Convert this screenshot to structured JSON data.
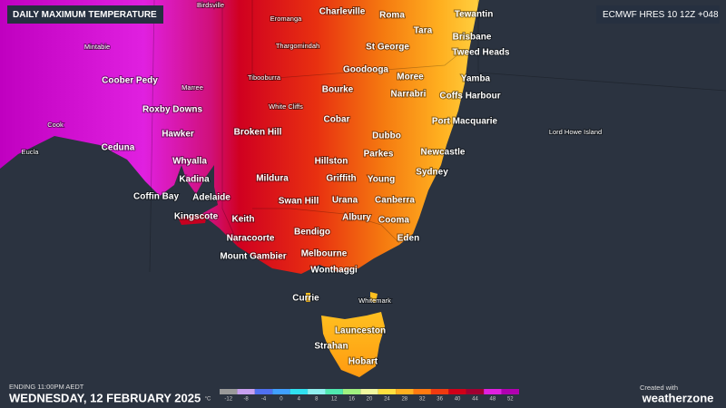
{
  "header": {
    "title": "DAILY MAXIMUM TEMPERATURE",
    "model": "ECMWF HRES 10 12Z +048"
  },
  "footer": {
    "ending": "ENDING 11:00PM AEDT",
    "date": "WEDNESDAY, 12 FEBRUARY 2025",
    "credit": "Created with",
    "brand": "weatherzone"
  },
  "legend": {
    "unit": "°C",
    "stops": [
      {
        "value": -12,
        "color": "#9a9a9a"
      },
      {
        "value": -8,
        "color": "#c8a0f0"
      },
      {
        "value": -4,
        "color": "#5070f0"
      },
      {
        "value": 0,
        "color": "#40a0ff"
      },
      {
        "value": 4,
        "color": "#30e0f0"
      },
      {
        "value": 8,
        "color": "#90f0f0"
      },
      {
        "value": 12,
        "color": "#50e8b0"
      },
      {
        "value": 16,
        "color": "#a0f080"
      },
      {
        "value": 20,
        "color": "#f0f8a0"
      },
      {
        "value": 24,
        "color": "#ffe040"
      },
      {
        "value": 28,
        "color": "#ffb020"
      },
      {
        "value": 32,
        "color": "#ff7a10"
      },
      {
        "value": 36,
        "color": "#f03a10"
      },
      {
        "value": 40,
        "color": "#d00018"
      },
      {
        "value": 44,
        "color": "#a00030"
      },
      {
        "value": 48,
        "color": "#e020e0"
      },
      {
        "value": 52,
        "color": "#b000b0"
      }
    ]
  },
  "places": [
    "Birdsville",
    "Eromanga",
    "Charleville",
    "Roma",
    "Tewantin",
    "Tara",
    "Brisbane",
    "Mintabie",
    "Thargomindah",
    "St George",
    "Tweed Heads",
    "Goodooga",
    "Coober Pedy",
    "Marree",
    "Tibooburra",
    "Moree",
    "Yamba",
    "Bourke",
    "Narrabri",
    "Coffs Harbour",
    "Roxby Downs",
    "White Cliffs",
    "Cobar",
    "Port Macquarie",
    "Cook",
    "Hawker",
    "Broken Hill",
    "Lord Howe Island",
    "Dubbo",
    "Ceduna",
    "Eucla",
    "Newcastle",
    "Parkes",
    "Hillston",
    "Whyalla",
    "Sydney",
    "Mildura",
    "Griffith",
    "Young",
    "Kadina",
    "Coffin Bay",
    "Adelaide",
    "Swan Hill",
    "Urana",
    "Canberra",
    "Kingscote",
    "Albury",
    "Cooma",
    "Keith",
    "Naracoorte",
    "Bendigo",
    "Eden",
    "Melbourne",
    "Mount Gambier",
    "Wonthaggi",
    "Currie",
    "Whitemark",
    "Launceston",
    "Strahan",
    "Hobart"
  ]
}
